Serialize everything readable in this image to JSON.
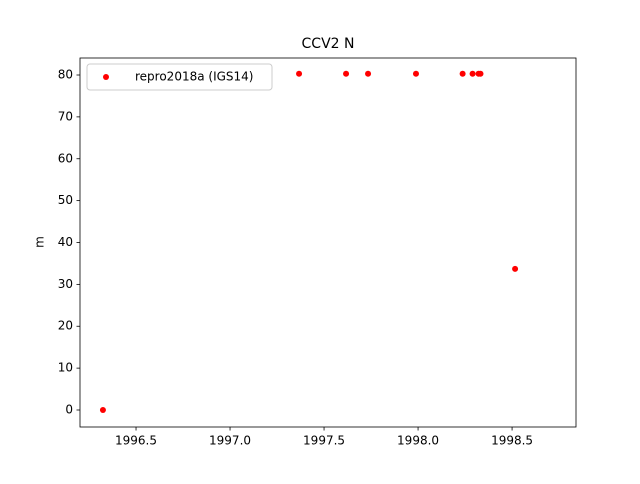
{
  "chart_data": {
    "type": "scatter",
    "title": "CCV2 N",
    "y_label": "m",
    "series": [
      {
        "name": "repro2018a (IGS14)",
        "color": "#ff0000",
        "x": [
          1996.324,
          1997.367,
          1997.617,
          1997.734,
          1997.989,
          1998.237,
          1998.29,
          1998.322,
          1998.332,
          1998.516
        ],
        "values": [
          0,
          80.3,
          80.3,
          80.3,
          80.3,
          80.3,
          80.3,
          80.3,
          80.3,
          33.7
        ]
      }
    ],
    "xlim": [
      1996.202,
      1998.84
    ],
    "xticks": [
      {
        "value": 1996.5,
        "label": "1996.5"
      },
      {
        "value": 1997,
        "label": "1997.0"
      },
      {
        "value": 1997.5,
        "label": "1997.5"
      },
      {
        "value": 1998,
        "label": "1998.0"
      },
      {
        "value": 1998.5,
        "label": "1998.5"
      }
    ],
    "ylim": [
      -4.06,
      84.06
    ],
    "yticks": [
      0,
      10,
      20,
      30,
      40,
      50,
      60,
      70,
      80
    ],
    "legend": "upper left",
    "grid": false
  }
}
